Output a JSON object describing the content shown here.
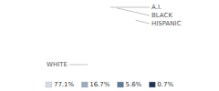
{
  "chart_data": {
    "type": "pie",
    "categories": [
      "WHITE",
      "HISPANIC",
      "BLACK",
      "A.I."
    ],
    "values": [
      77.1,
      16.7,
      5.6,
      0.7
    ],
    "value_labels": [
      "77.1%",
      "16.7%",
      "5.6%",
      "0.7%"
    ],
    "colors": [
      "#d4dce8",
      "#9aaac0",
      "#5b7b9a",
      "#1c3455"
    ],
    "legend": "bottom"
  }
}
